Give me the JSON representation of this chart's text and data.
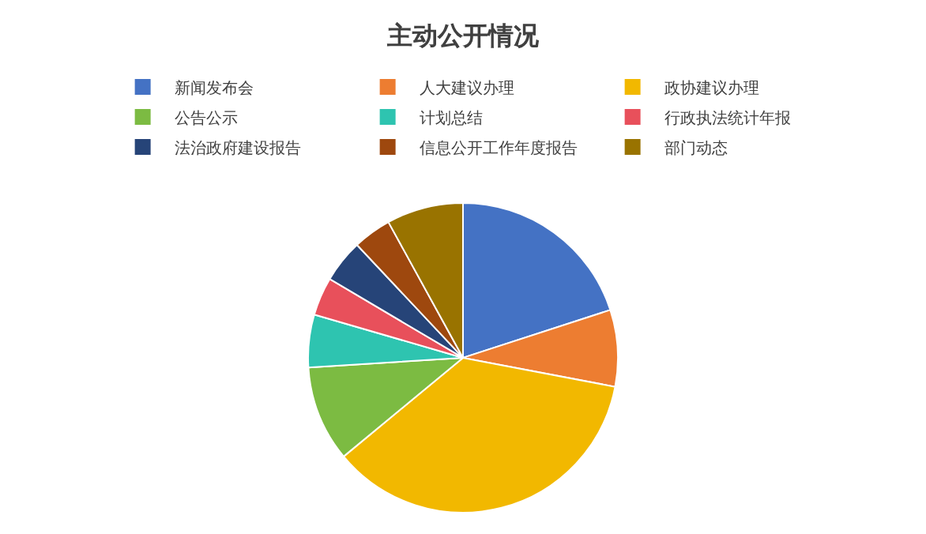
{
  "chart_data": {
    "type": "pie",
    "title": "主动公开情况",
    "categories": [
      "新闻发布会",
      "人大建议办理",
      "政协建议办理",
      "公告公示",
      "计划总结",
      "行政执法统计年报",
      "法治政府建设报告",
      "信息公开工作年度报告",
      "部门动态"
    ],
    "values": [
      20,
      8,
      36,
      10,
      5.5,
      4,
      4.5,
      4,
      8
    ],
    "colors": [
      "#4472c4",
      "#ed7d31",
      "#f2b800",
      "#7cbb42",
      "#2ec4b0",
      "#e8505b",
      "#264478",
      "#9e480e",
      "#997300"
    ],
    "legend": "top"
  }
}
